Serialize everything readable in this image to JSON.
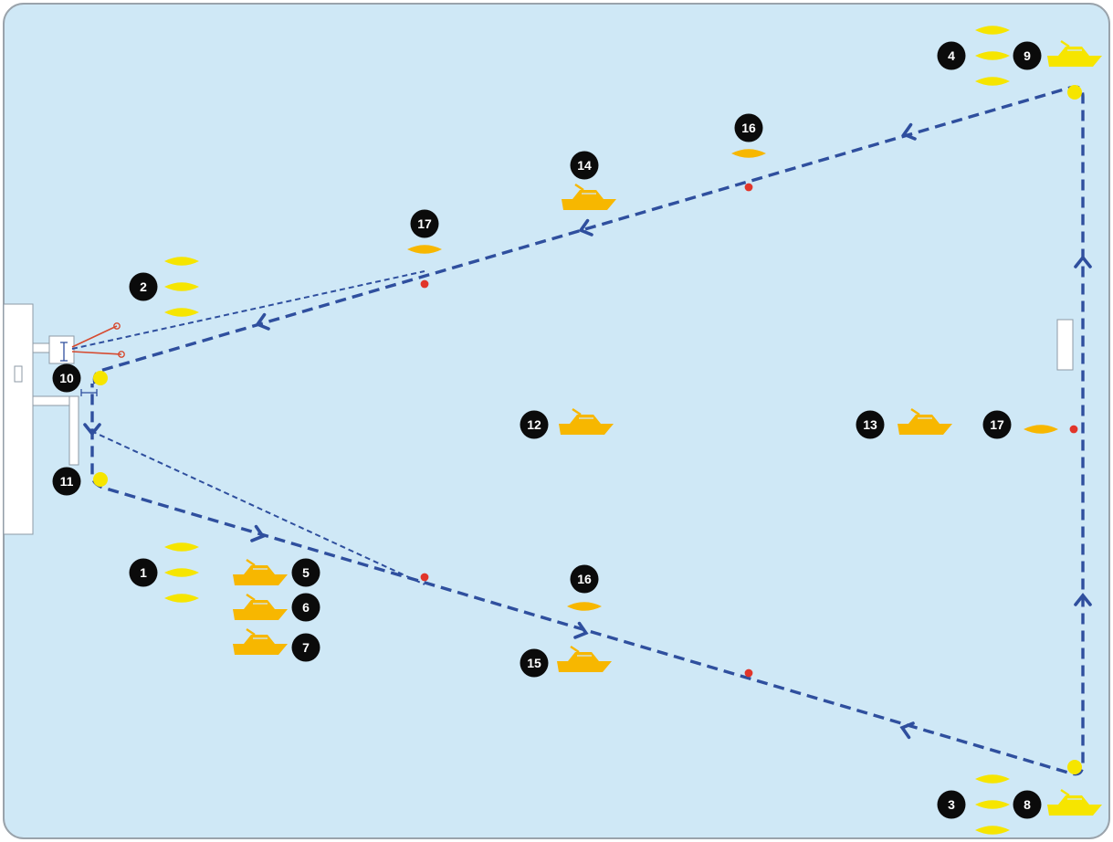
{
  "colors": {
    "water": "#cfe8f6",
    "border": "#9aa3ab",
    "course_line": "#2f4f9e",
    "buoy_yellow": "#f6e500",
    "marker_orange": "#f7b700",
    "dot_red": "#e1352a",
    "marker_black": "#0b0b0b",
    "structure_white": "#ffffff",
    "structure_stroke": "#8c9aa5",
    "pull_red": "#d64a2f"
  },
  "icons": {
    "number_marker": "black-circle-number",
    "boat": "motorboat-icon",
    "flat_marker": "lens-marker-icon",
    "red_point": "red-dot-icon",
    "arrow": "chevron-arrow-icon"
  },
  "markers": [
    {
      "label": "1"
    },
    {
      "label": "2"
    },
    {
      "label": "3"
    },
    {
      "label": "4"
    },
    {
      "label": "5"
    },
    {
      "label": "6"
    },
    {
      "label": "7"
    },
    {
      "label": "8"
    },
    {
      "label": "9"
    },
    {
      "label": "10"
    },
    {
      "label": "11"
    },
    {
      "label": "12"
    },
    {
      "label": "13"
    },
    {
      "label": "14"
    },
    {
      "label": "15"
    },
    {
      "label": "16"
    },
    {
      "label": "16"
    },
    {
      "label": "17"
    },
    {
      "label": "17"
    }
  ]
}
